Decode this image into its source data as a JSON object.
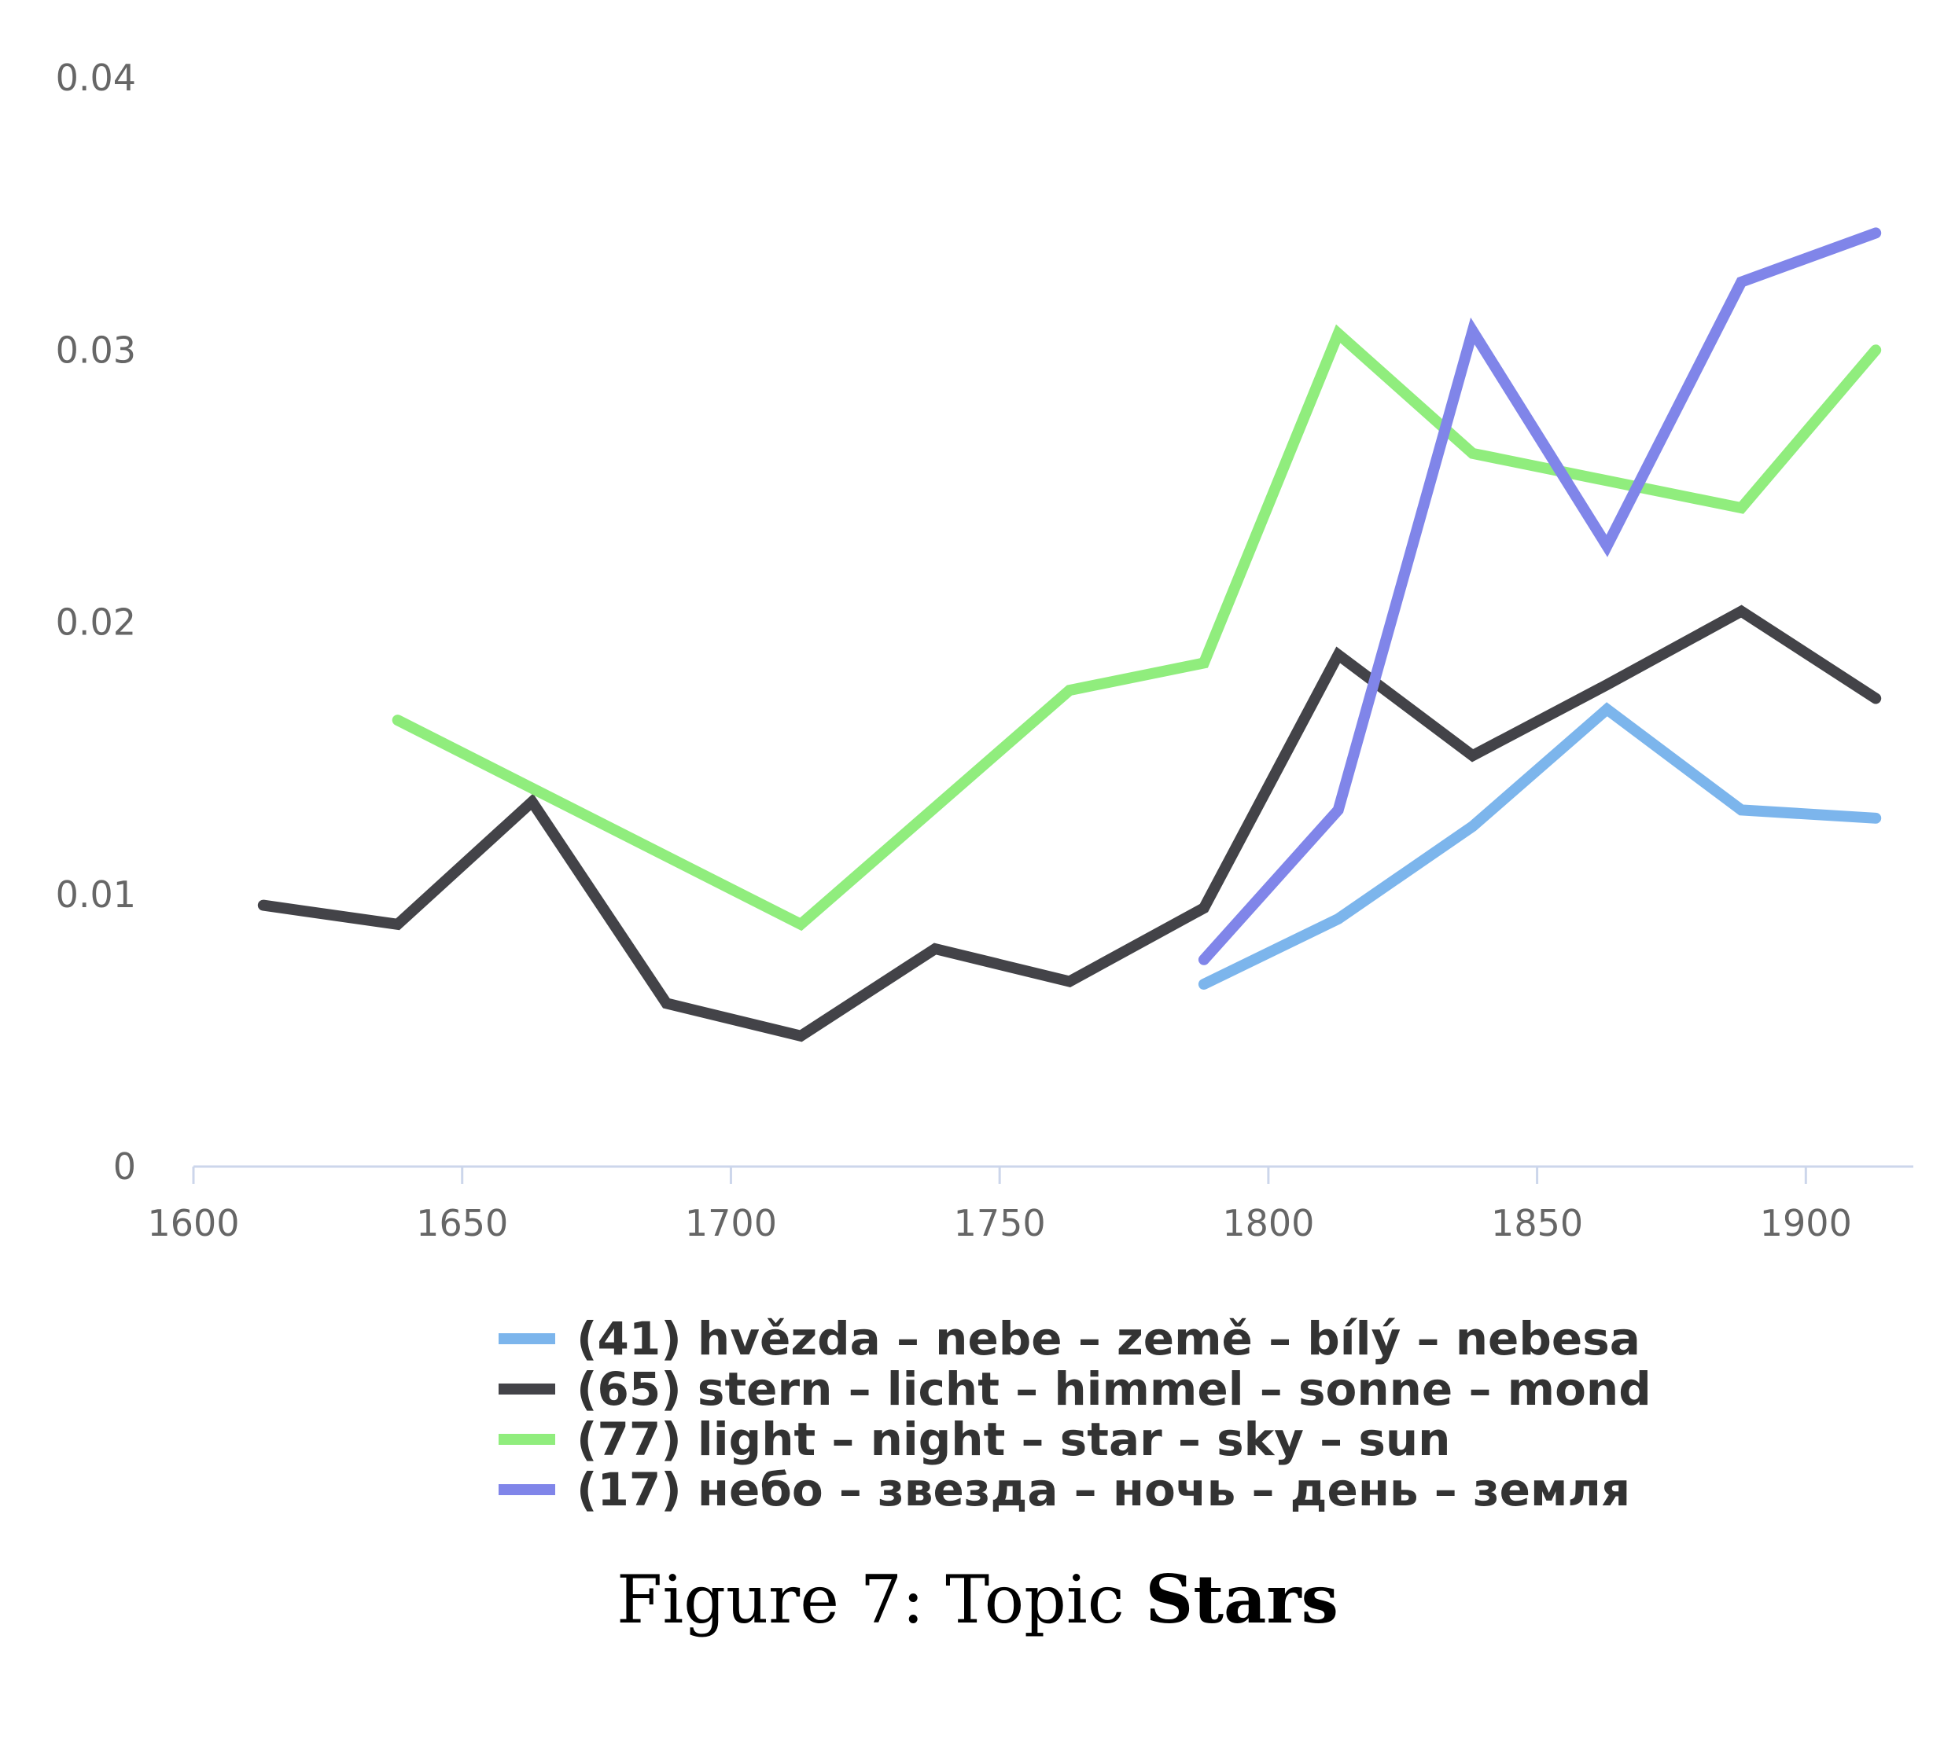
{
  "chart_data": {
    "type": "line",
    "title": "",
    "xlabel": "",
    "ylabel": "",
    "xlim": [
      1600,
      1920
    ],
    "ylim": [
      0,
      0.04
    ],
    "x_ticks": [
      "1600",
      "1650",
      "1700",
      "1750",
      "1800",
      "1850",
      "1900"
    ],
    "y_ticks": [
      "0",
      "0.01",
      "0.02",
      "0.03",
      "0.04"
    ],
    "grid": false,
    "legend_position": "bottom",
    "series": [
      {
        "name": "(41) hvězda – nebe – země – bílý – nebesa",
        "color": "#7cb5ec",
        "points": [
          [
            1788,
            0.0067
          ],
          [
            1813,
            0.0091
          ],
          [
            1838,
            0.0125
          ],
          [
            1863,
            0.0168
          ],
          [
            1888,
            0.0131
          ],
          [
            1913,
            0.0128
          ]
        ]
      },
      {
        "name": "(65) stern – licht – himmel – sonne – mond",
        "color": "#434348",
        "points": [
          [
            1613,
            0.0096
          ],
          [
            1638,
            0.0089
          ],
          [
            1663,
            0.0134
          ],
          [
            1688,
            0.006
          ],
          [
            1713,
            0.0048
          ],
          [
            1738,
            0.008
          ],
          [
            1763,
            0.0068
          ],
          [
            1788,
            0.0095
          ],
          [
            1813,
            0.0188
          ],
          [
            1838,
            0.0151
          ],
          [
            1863,
            0.0177
          ],
          [
            1888,
            0.0204
          ],
          [
            1913,
            0.0172
          ]
        ]
      },
      {
        "name": "(77) light – night – star – sky – sun",
        "color": "#90ed7d",
        "points": [
          [
            1638,
            0.0164
          ],
          [
            1713,
            0.0089
          ],
          [
            1763,
            0.0175
          ],
          [
            1788,
            0.0185
          ],
          [
            1813,
            0.0306
          ],
          [
            1838,
            0.0262
          ],
          [
            1888,
            0.0242
          ],
          [
            1913,
            0.03
          ]
        ]
      },
      {
        "name": "(17) небо – звезда – ночь – день – земля",
        "color": "#8085e9",
        "points": [
          [
            1788,
            0.0076
          ],
          [
            1813,
            0.0131
          ],
          [
            1838,
            0.0307
          ],
          [
            1863,
            0.0228
          ],
          [
            1888,
            0.0325
          ],
          [
            1913,
            0.0343
          ]
        ]
      }
    ]
  },
  "caption": {
    "prefix": "Figure 7: Topic ",
    "bold": "Stars"
  }
}
